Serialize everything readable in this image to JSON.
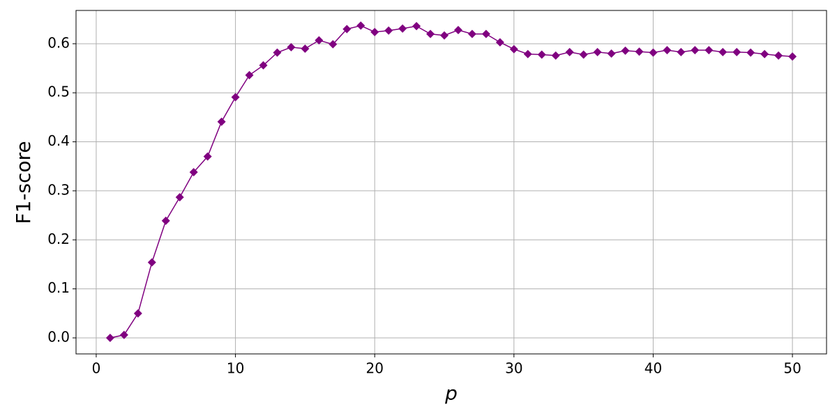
{
  "chart_data": {
    "type": "line",
    "xlabel": "p",
    "ylabel": "F1-score",
    "x": [
      1,
      2,
      3,
      4,
      5,
      6,
      7,
      8,
      9,
      10,
      11,
      12,
      13,
      14,
      15,
      16,
      17,
      18,
      19,
      20,
      21,
      22,
      23,
      24,
      25,
      26,
      27,
      28,
      29,
      30,
      31,
      32,
      33,
      34,
      35,
      36,
      37,
      38,
      39,
      40,
      41,
      42,
      43,
      44,
      45,
      46,
      47,
      48,
      49,
      50
    ],
    "series": [
      {
        "color": "#800080",
        "marker": "diamond",
        "values": [
          0.0,
          0.006,
          0.05,
          0.154,
          0.239,
          0.287,
          0.338,
          0.37,
          0.441,
          0.491,
          0.536,
          0.556,
          0.582,
          0.593,
          0.59,
          0.607,
          0.599,
          0.63,
          0.637,
          0.624,
          0.627,
          0.631,
          0.636,
          0.62,
          0.617,
          0.628,
          0.62,
          0.62,
          0.603,
          0.589,
          0.579,
          0.578,
          0.576,
          0.583,
          0.578,
          0.583,
          0.58,
          0.586,
          0.584,
          0.582,
          0.587,
          0.583,
          0.587,
          0.587,
          0.583,
          0.583,
          0.582,
          0.579,
          0.576,
          0.574
        ]
      }
    ],
    "xlim": [
      -1.45,
      52.45
    ],
    "xticks": [
      0,
      10,
      20,
      30,
      40,
      50
    ],
    "ylim": [
      -0.0327,
      0.668
    ],
    "yticks": [
      {
        "value": 0,
        "label": "0.0"
      },
      0.1,
      0.2,
      0.3,
      0.4,
      0.5,
      0.6
    ],
    "grid": true
  }
}
